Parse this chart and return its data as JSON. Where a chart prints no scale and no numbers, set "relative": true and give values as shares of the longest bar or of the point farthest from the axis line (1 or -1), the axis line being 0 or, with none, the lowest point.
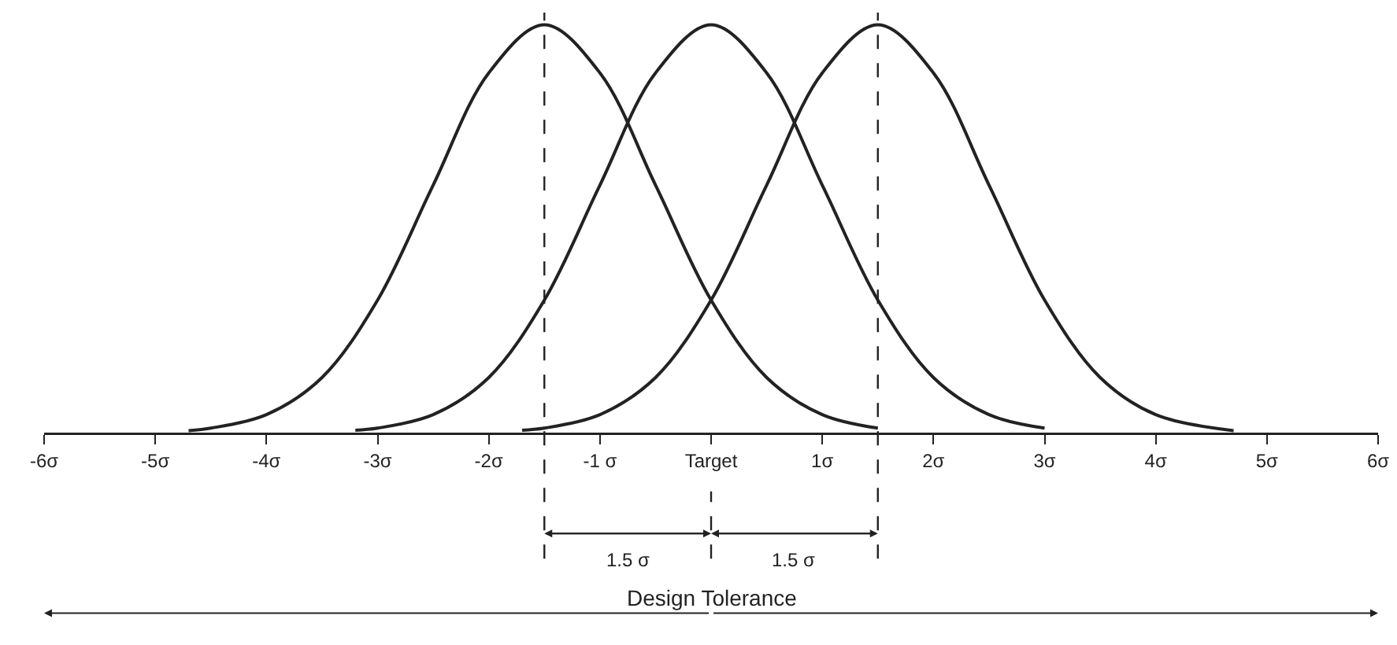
{
  "chart_data": {
    "type": "line",
    "relative": true,
    "series": [
      {
        "color": "#222222",
        "x": [
          -4.7,
          -4.5,
          -4,
          -3.5,
          -3,
          -2.5,
          -2,
          -1.5,
          -1,
          -0.5,
          0,
          0.5,
          1,
          1.5
        ],
        "values": [
          0.005,
          0.011,
          0.044,
          0.135,
          0.325,
          0.607,
          0.882,
          1,
          0.882,
          0.607,
          0.325,
          0.135,
          0.044,
          0.011
        ]
      },
      {
        "color": "#222222",
        "x": [
          -3.2,
          -3,
          -2.5,
          -2,
          -1.5,
          -1,
          -0.5,
          0,
          0.5,
          1,
          1.5,
          2,
          2.5,
          3
        ],
        "values": [
          0.006,
          0.011,
          0.044,
          0.135,
          0.325,
          0.607,
          0.882,
          1,
          0.882,
          0.607,
          0.325,
          0.135,
          0.044,
          0.011
        ]
      },
      {
        "color": "#222222",
        "x": [
          -1.7,
          -1.5,
          -1,
          -0.5,
          0,
          0.5,
          1,
          1.5,
          2,
          2.5,
          3,
          3.5,
          4,
          4.7
        ],
        "values": [
          0.006,
          0.011,
          0.044,
          0.135,
          0.325,
          0.607,
          0.882,
          1,
          0.882,
          0.607,
          0.325,
          0.135,
          0.044,
          0.005
        ]
      }
    ],
    "xlim": [
      -6,
      6
    ],
    "xticks": [
      {
        "value": -6,
        "label": "-6σ"
      },
      {
        "value": -5,
        "label": "-5σ"
      },
      {
        "value": -4,
        "label": "-4σ"
      },
      {
        "value": -3,
        "label": "-3σ"
      },
      {
        "value": -2,
        "label": "-2σ"
      },
      {
        "value": -1,
        "label": "-1 σ"
      },
      {
        "value": 0,
        "label": "Target"
      },
      {
        "value": 1,
        "label": "1σ"
      },
      {
        "value": 2,
        "label": "2σ"
      },
      {
        "value": 3,
        "label": "3σ"
      },
      {
        "value": 4,
        "label": "4σ"
      },
      {
        "value": 5,
        "label": "5σ"
      },
      {
        "value": 6,
        "label": "6σ"
      }
    ],
    "ref_lines": [
      {
        "axis": "x",
        "value": -1.5,
        "line_style": "dashed"
      },
      {
        "axis": "x",
        "value": 1.5,
        "line_style": "dashed"
      }
    ],
    "annotations": [
      "1.5 σ",
      "1.5 σ",
      "Design Tolerance"
    ],
    "grid": false,
    "marker": "none",
    "line_style": "solid"
  }
}
